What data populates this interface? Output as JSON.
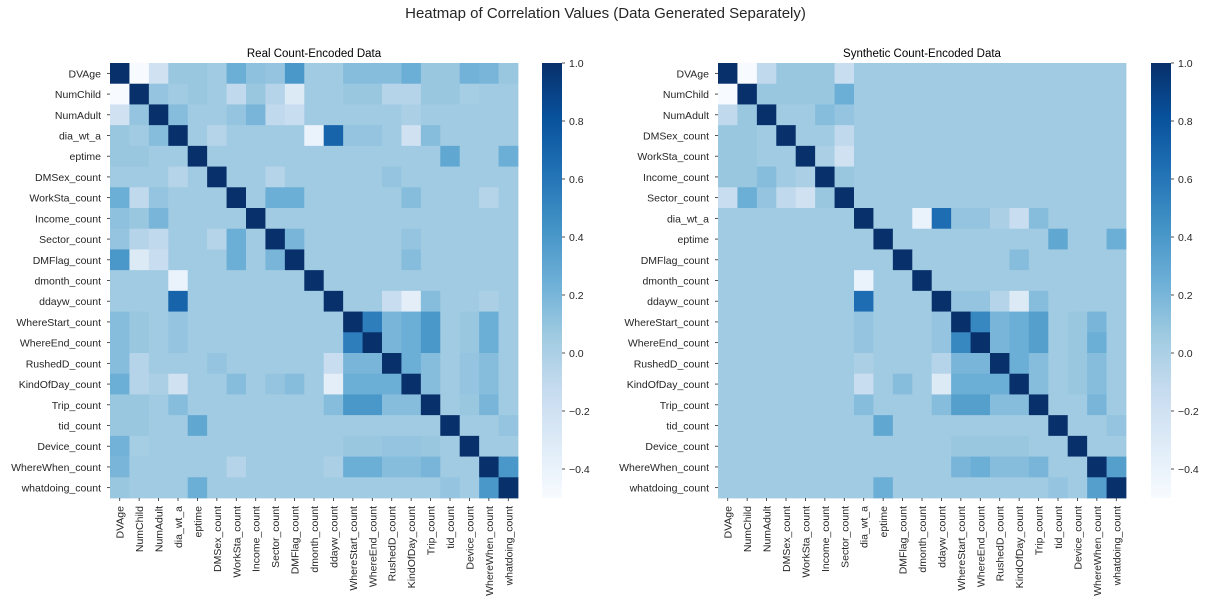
{
  "suptitle": "Heatmap of Correlation Values (Data Generated Separately)",
  "colormap": {
    "name": "Blues",
    "stops": [
      "#f7fbff",
      "#deebf7",
      "#c6dbef",
      "#9ecae1",
      "#6baed6",
      "#4292c6",
      "#2171b5",
      "#08519c",
      "#08306b"
    ],
    "vmin": -0.5,
    "vmax": 1.0,
    "ticks": [
      "1.0",
      "0.8",
      "0.6",
      "0.4",
      "0.2",
      "0.0",
      "−0.2",
      "−0.4"
    ],
    "tick_values": [
      1.0,
      0.8,
      0.6,
      0.4,
      0.2,
      0.0,
      -0.2,
      -0.4
    ]
  },
  "chart_data": [
    {
      "type": "heatmap",
      "title": "Real Count-Encoded Data",
      "labels": [
        "DVAge",
        "NumChild",
        "NumAdult",
        "dia_wt_a",
        "eptime",
        "DMSex_count",
        "WorkSta_count",
        "Income_count",
        "Sector_count",
        "DMFlag_count",
        "dmonth_count",
        "ddayw_count",
        "WhereStart_count",
        "WhereEnd_count",
        "RushedD_count",
        "KindOfDay_count",
        "Trip_count",
        "tid_count",
        "Device_count",
        "WhereWhen_count",
        "whatdoing_count"
      ],
      "values": [
        [
          1.0,
          -0.5,
          -0.2,
          0.08,
          0.08,
          0.05,
          0.25,
          0.12,
          0.1,
          0.4,
          0.05,
          0.05,
          0.15,
          0.15,
          0.15,
          0.25,
          0.08,
          0.08,
          0.22,
          0.2,
          0.08
        ],
        [
          -0.5,
          1.0,
          0.1,
          0.05,
          0.08,
          0.05,
          -0.1,
          0.08,
          -0.05,
          -0.3,
          0.05,
          0.05,
          0.08,
          0.08,
          -0.05,
          -0.05,
          0.08,
          0.08,
          0.03,
          0.05,
          0.05
        ],
        [
          -0.2,
          0.1,
          1.0,
          0.15,
          0.05,
          0.05,
          0.1,
          0.2,
          -0.1,
          -0.15,
          0.05,
          0.05,
          0.05,
          0.05,
          0.05,
          0.0,
          0.05,
          0.05,
          0.05,
          0.05,
          0.05
        ],
        [
          0.08,
          0.05,
          0.15,
          1.0,
          0.05,
          -0.05,
          0.05,
          0.05,
          0.05,
          0.05,
          -0.4,
          0.7,
          0.1,
          0.1,
          0.05,
          -0.2,
          0.15,
          0.05,
          0.05,
          0.05,
          0.05
        ],
        [
          0.08,
          0.08,
          0.05,
          0.05,
          1.0,
          0.05,
          0.05,
          0.05,
          0.05,
          0.05,
          0.05,
          0.05,
          0.05,
          0.05,
          0.05,
          0.05,
          0.05,
          0.3,
          0.05,
          0.05,
          0.25
        ],
        [
          0.05,
          0.05,
          0.05,
          -0.05,
          0.05,
          1.0,
          0.05,
          0.05,
          -0.05,
          0.05,
          0.05,
          0.05,
          0.05,
          0.05,
          0.1,
          0.05,
          0.05,
          0.05,
          0.05,
          0.05,
          0.05
        ],
        [
          0.25,
          -0.1,
          0.1,
          0.05,
          0.05,
          0.05,
          1.0,
          0.05,
          0.25,
          0.25,
          0.05,
          0.05,
          0.05,
          0.05,
          0.05,
          0.15,
          0.05,
          0.05,
          0.05,
          -0.05,
          0.05
        ],
        [
          0.12,
          0.08,
          0.2,
          0.05,
          0.05,
          0.05,
          0.05,
          1.0,
          0.05,
          0.05,
          0.05,
          0.05,
          0.05,
          0.05,
          0.05,
          0.05,
          0.05,
          0.05,
          0.05,
          0.05,
          0.05
        ],
        [
          0.1,
          -0.05,
          -0.1,
          0.05,
          0.05,
          -0.05,
          0.25,
          0.05,
          1.0,
          0.2,
          0.05,
          0.05,
          0.05,
          0.05,
          0.05,
          0.1,
          0.05,
          0.05,
          0.05,
          0.05,
          0.05
        ],
        [
          0.4,
          -0.3,
          -0.15,
          0.05,
          0.05,
          0.05,
          0.25,
          0.05,
          0.2,
          1.0,
          0.05,
          0.05,
          0.05,
          0.05,
          0.05,
          0.15,
          0.05,
          0.05,
          0.05,
          0.05,
          0.05
        ],
        [
          0.05,
          0.05,
          0.05,
          -0.4,
          0.05,
          0.05,
          0.05,
          0.05,
          0.05,
          0.05,
          1.0,
          0.05,
          0.05,
          0.05,
          0.05,
          0.05,
          0.05,
          0.05,
          0.05,
          0.05,
          0.05
        ],
        [
          0.05,
          0.05,
          0.05,
          0.7,
          0.05,
          0.05,
          0.05,
          0.05,
          0.05,
          0.05,
          0.05,
          1.0,
          0.05,
          0.05,
          -0.15,
          -0.35,
          0.15,
          0.05,
          0.05,
          0.0,
          0.05
        ],
        [
          0.15,
          0.08,
          0.05,
          0.1,
          0.05,
          0.05,
          0.05,
          0.05,
          0.05,
          0.05,
          0.05,
          0.05,
          1.0,
          0.55,
          0.2,
          0.25,
          0.4,
          0.05,
          0.08,
          0.25,
          0.05
        ],
        [
          0.15,
          0.08,
          0.05,
          0.1,
          0.05,
          0.05,
          0.05,
          0.05,
          0.05,
          0.05,
          0.05,
          0.05,
          0.55,
          1.0,
          0.2,
          0.25,
          0.4,
          0.05,
          0.08,
          0.25,
          0.05
        ],
        [
          0.15,
          -0.05,
          0.05,
          0.05,
          0.05,
          0.1,
          0.05,
          0.05,
          0.05,
          0.05,
          0.05,
          -0.15,
          0.2,
          0.2,
          1.0,
          0.25,
          0.15,
          0.05,
          0.1,
          0.15,
          0.05
        ],
        [
          0.25,
          -0.05,
          0.0,
          -0.2,
          0.05,
          0.05,
          0.15,
          0.05,
          0.1,
          0.15,
          0.05,
          -0.35,
          0.25,
          0.25,
          0.25,
          1.0,
          0.15,
          0.05,
          0.1,
          0.15,
          0.05
        ],
        [
          0.08,
          0.08,
          0.05,
          0.15,
          0.05,
          0.05,
          0.05,
          0.05,
          0.05,
          0.05,
          0.05,
          0.15,
          0.4,
          0.4,
          0.15,
          0.15,
          1.0,
          0.05,
          0.08,
          0.2,
          0.05
        ],
        [
          0.08,
          0.08,
          0.05,
          0.05,
          0.3,
          0.05,
          0.05,
          0.05,
          0.05,
          0.05,
          0.05,
          0.05,
          0.05,
          0.05,
          0.05,
          0.05,
          0.05,
          1.0,
          0.05,
          0.05,
          0.1
        ],
        [
          0.22,
          0.03,
          0.05,
          0.05,
          0.05,
          0.05,
          0.05,
          0.05,
          0.05,
          0.05,
          0.05,
          0.05,
          0.08,
          0.08,
          0.1,
          0.1,
          0.08,
          0.05,
          1.0,
          0.05,
          0.05
        ],
        [
          0.2,
          0.05,
          0.05,
          0.05,
          0.05,
          0.05,
          -0.05,
          0.05,
          0.05,
          0.05,
          0.05,
          0.0,
          0.25,
          0.25,
          0.15,
          0.15,
          0.2,
          0.05,
          0.05,
          1.0,
          0.4
        ],
        [
          0.08,
          0.05,
          0.05,
          0.05,
          0.25,
          0.05,
          0.05,
          0.05,
          0.05,
          0.05,
          0.05,
          0.05,
          0.05,
          0.05,
          0.05,
          0.05,
          0.05,
          0.1,
          0.05,
          0.4,
          1.0
        ]
      ]
    },
    {
      "type": "heatmap",
      "title": "Synthetic Count-Encoded Data",
      "labels": [
        "DVAge",
        "NumChild",
        "NumAdult",
        "DMSex_count",
        "WorkSta_count",
        "Income_count",
        "Sector_count",
        "dia_wt_a",
        "eptime",
        "DMFlag_count",
        "dmonth_count",
        "ddayw_count",
        "WhereStart_count",
        "WhereEnd_count",
        "RushedD_count",
        "KindOfDay_count",
        "Trip_count",
        "tid_count",
        "Device_count",
        "WhereWhen_count",
        "whatdoing_count"
      ],
      "values": [
        [
          1.0,
          -0.5,
          -0.1,
          0.08,
          0.08,
          0.08,
          -0.15,
          0.05,
          0.05,
          0.05,
          0.05,
          0.05,
          0.05,
          0.05,
          0.05,
          0.05,
          0.05,
          0.05,
          0.05,
          0.05,
          0.05
        ],
        [
          -0.5,
          1.0,
          0.08,
          0.08,
          0.08,
          0.08,
          0.25,
          0.05,
          0.05,
          0.05,
          0.05,
          0.05,
          0.05,
          0.05,
          0.05,
          0.05,
          0.05,
          0.05,
          0.05,
          0.05,
          0.05
        ],
        [
          -0.1,
          0.08,
          1.0,
          0.05,
          0.05,
          0.15,
          0.1,
          0.05,
          0.05,
          0.05,
          0.05,
          0.05,
          0.05,
          0.05,
          0.05,
          0.05,
          0.05,
          0.05,
          0.05,
          0.05,
          0.05
        ],
        [
          0.08,
          0.08,
          0.05,
          1.0,
          0.05,
          0.05,
          -0.1,
          0.05,
          0.05,
          0.05,
          0.05,
          0.05,
          0.05,
          0.05,
          0.05,
          0.05,
          0.05,
          0.05,
          0.05,
          0.05,
          0.05
        ],
        [
          0.08,
          0.08,
          0.05,
          0.05,
          1.0,
          0.0,
          -0.2,
          0.05,
          0.05,
          0.05,
          0.05,
          0.05,
          0.05,
          0.05,
          0.05,
          0.05,
          0.05,
          0.05,
          0.05,
          0.05,
          0.05
        ],
        [
          0.08,
          0.08,
          0.15,
          0.05,
          0.0,
          1.0,
          0.08,
          0.05,
          0.05,
          0.05,
          0.05,
          0.05,
          0.05,
          0.05,
          0.05,
          0.05,
          0.05,
          0.05,
          0.05,
          0.05,
          0.05
        ],
        [
          -0.15,
          0.25,
          0.1,
          -0.1,
          -0.2,
          0.08,
          1.0,
          0.05,
          0.05,
          0.05,
          0.05,
          0.05,
          0.05,
          0.05,
          0.05,
          0.05,
          0.05,
          0.05,
          0.05,
          0.05,
          0.05
        ],
        [
          0.05,
          0.05,
          0.05,
          0.05,
          0.05,
          0.05,
          0.05,
          1.0,
          0.05,
          0.05,
          -0.4,
          0.65,
          0.1,
          0.1,
          0.0,
          -0.15,
          0.15,
          0.05,
          0.05,
          0.05,
          0.05
        ],
        [
          0.05,
          0.05,
          0.05,
          0.05,
          0.05,
          0.05,
          0.05,
          0.05,
          1.0,
          0.05,
          0.05,
          0.05,
          0.05,
          0.05,
          0.05,
          0.05,
          0.05,
          0.3,
          0.05,
          0.05,
          0.25
        ],
        [
          0.05,
          0.05,
          0.05,
          0.05,
          0.05,
          0.05,
          0.05,
          0.05,
          0.05,
          1.0,
          0.05,
          0.05,
          0.05,
          0.05,
          0.05,
          0.15,
          0.05,
          0.05,
          0.05,
          0.05,
          0.05
        ],
        [
          0.05,
          0.05,
          0.05,
          0.05,
          0.05,
          0.05,
          0.05,
          -0.4,
          0.05,
          0.05,
          1.0,
          0.05,
          0.05,
          0.05,
          0.05,
          0.05,
          0.05,
          0.05,
          0.05,
          0.05,
          0.05
        ],
        [
          0.05,
          0.05,
          0.05,
          0.05,
          0.05,
          0.05,
          0.05,
          0.65,
          0.05,
          0.05,
          0.05,
          1.0,
          0.1,
          0.1,
          -0.05,
          -0.3,
          0.15,
          0.05,
          0.05,
          0.05,
          0.05
        ],
        [
          0.05,
          0.05,
          0.05,
          0.05,
          0.05,
          0.05,
          0.05,
          0.1,
          0.05,
          0.05,
          0.05,
          0.1,
          1.0,
          0.5,
          0.2,
          0.25,
          0.35,
          0.05,
          0.08,
          0.2,
          0.05
        ],
        [
          0.05,
          0.05,
          0.05,
          0.05,
          0.05,
          0.05,
          0.05,
          0.1,
          0.05,
          0.05,
          0.05,
          0.1,
          0.5,
          1.0,
          0.2,
          0.25,
          0.35,
          0.05,
          0.08,
          0.25,
          0.05
        ],
        [
          0.05,
          0.05,
          0.05,
          0.05,
          0.05,
          0.05,
          0.05,
          0.0,
          0.05,
          0.05,
          0.05,
          -0.05,
          0.2,
          0.2,
          1.0,
          0.25,
          0.15,
          0.05,
          0.08,
          0.15,
          0.05
        ],
        [
          0.05,
          0.05,
          0.05,
          0.05,
          0.05,
          0.05,
          0.05,
          -0.15,
          0.05,
          0.15,
          0.05,
          -0.3,
          0.25,
          0.25,
          0.25,
          1.0,
          0.15,
          0.05,
          0.08,
          0.15,
          0.05
        ],
        [
          0.05,
          0.05,
          0.05,
          0.05,
          0.05,
          0.05,
          0.05,
          0.15,
          0.05,
          0.05,
          0.05,
          0.15,
          0.35,
          0.35,
          0.15,
          0.15,
          1.0,
          0.05,
          0.05,
          0.2,
          0.05
        ],
        [
          0.05,
          0.05,
          0.05,
          0.05,
          0.05,
          0.05,
          0.05,
          0.05,
          0.3,
          0.05,
          0.05,
          0.05,
          0.05,
          0.05,
          0.05,
          0.05,
          0.05,
          1.0,
          0.05,
          0.05,
          0.1
        ],
        [
          0.05,
          0.05,
          0.05,
          0.05,
          0.05,
          0.05,
          0.05,
          0.05,
          0.05,
          0.05,
          0.05,
          0.05,
          0.08,
          0.08,
          0.08,
          0.08,
          0.05,
          0.05,
          1.0,
          0.05,
          0.05
        ],
        [
          0.05,
          0.05,
          0.05,
          0.05,
          0.05,
          0.05,
          0.05,
          0.05,
          0.05,
          0.05,
          0.05,
          0.05,
          0.2,
          0.25,
          0.15,
          0.15,
          0.2,
          0.05,
          0.05,
          1.0,
          0.35
        ],
        [
          0.05,
          0.05,
          0.05,
          0.05,
          0.05,
          0.05,
          0.05,
          0.05,
          0.25,
          0.05,
          0.05,
          0.05,
          0.05,
          0.05,
          0.05,
          0.05,
          0.05,
          0.1,
          0.05,
          0.35,
          1.0
        ]
      ]
    }
  ]
}
